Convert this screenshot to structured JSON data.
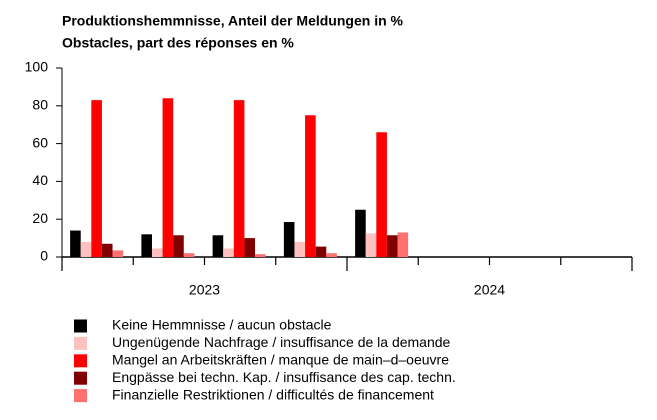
{
  "chart_data": {
    "type": "bar",
    "title": [
      "Produktionshemmnisse, Anteil der Meldungen in %",
      "Obstacles, part des réponses en %"
    ],
    "categories": [
      null,
      null,
      null,
      null,
      null,
      null,
      null,
      null
    ],
    "groups": [
      "2023",
      "2024"
    ],
    "series": [
      {
        "name": "Keine Hemmnisse / aucun obstacle",
        "color": "#000000",
        "values": [
          14,
          12,
          11.5,
          18.5,
          25,
          null,
          null,
          null
        ]
      },
      {
        "name": "Ungenügende Nachfrage / insuffisance de la demande",
        "color": "#ffc0c0",
        "values": [
          8,
          4.5,
          4.5,
          8,
          12.5,
          null,
          null,
          null
        ]
      },
      {
        "name": "Mangel an Arbeitskräften / manque de main–d–oeuvre",
        "color": "#ff0000",
        "values": [
          83,
          84,
          83,
          75,
          66,
          null,
          null,
          null
        ]
      },
      {
        "name": "Engpässe bei techn. Kap. / insuffisance des cap. techn.",
        "color": "#800000",
        "values": [
          7,
          11.5,
          10,
          5.5,
          11.5,
          null,
          null,
          null
        ]
      },
      {
        "name": "Finanzielle Restriktionen / difficultés de financement",
        "color": "#ff7070",
        "values": [
          3.5,
          2,
          1.5,
          2,
          13,
          null,
          null,
          null
        ]
      }
    ],
    "ylim": [
      0,
      100
    ],
    "yticks": [
      0,
      20,
      40,
      60,
      80,
      100
    ],
    "grid": false
  }
}
